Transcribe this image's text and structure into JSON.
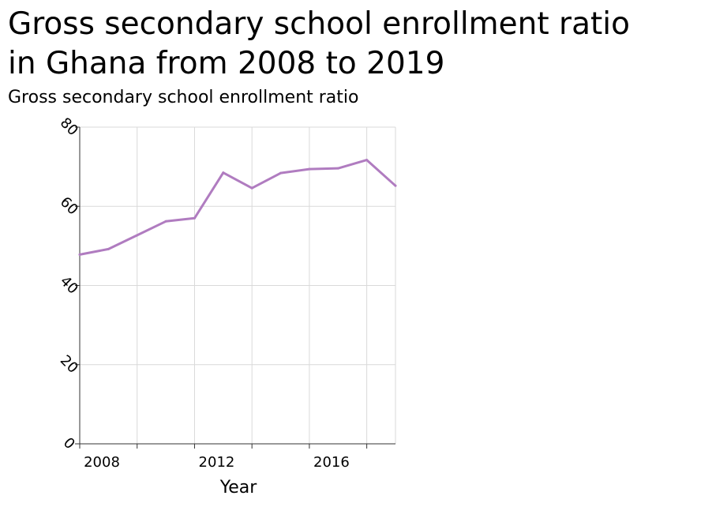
{
  "chart_data": {
    "type": "line",
    "title": "Gross secondary school enrollment ratio\nin Ghana from 2008 to 2019",
    "ylabel": "Gross secondary school enrollment ratio",
    "xlabel": "Year",
    "xlim": [
      2008,
      2019
    ],
    "ylim": [
      0,
      80
    ],
    "x_ticks": [
      2008,
      2012,
      2016
    ],
    "x_minor_ticks": [
      2010,
      2014,
      2018
    ],
    "y_ticks": [
      0,
      20,
      40,
      60,
      80
    ],
    "grid": true,
    "line_color": "#b07cc0",
    "series": [
      {
        "x": [
          2008,
          2009,
          2010,
          2011,
          2012,
          2013,
          2014,
          2015,
          2016,
          2017,
          2018,
          2019
        ],
        "values": [
          47.8,
          49.2,
          52.7,
          56.2,
          57.0,
          68.5,
          64.6,
          68.4,
          69.4,
          69.6,
          71.7,
          65.2
        ]
      }
    ]
  }
}
